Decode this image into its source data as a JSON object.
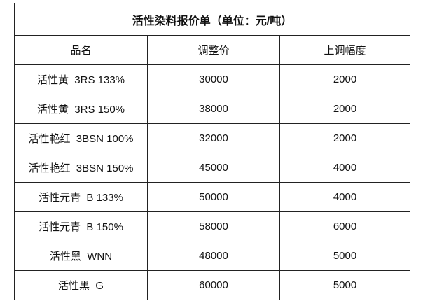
{
  "title": "活性染料报价单（单位：元/吨）",
  "table": {
    "header": [
      "品名",
      "调整价",
      "上调幅度"
    ],
    "rows": [
      [
        "活性黄  3RS 133%",
        30000,
        2000
      ],
      [
        "活性黄  3RS 150%",
        38000,
        2000
      ],
      [
        "活性艳红  3BSN 100%",
        32000,
        2000
      ],
      [
        "活性艳红  3BSN 150%",
        45000,
        4000
      ],
      [
        "活性元青  B 133%",
        50000,
        4000
      ],
      [
        "活性元青  B 150%",
        58000,
        6000
      ],
      [
        "活性黑  WNN",
        48000,
        5000
      ],
      [
        "活性黑  G",
        60000,
        5000
      ]
    ]
  }
}
